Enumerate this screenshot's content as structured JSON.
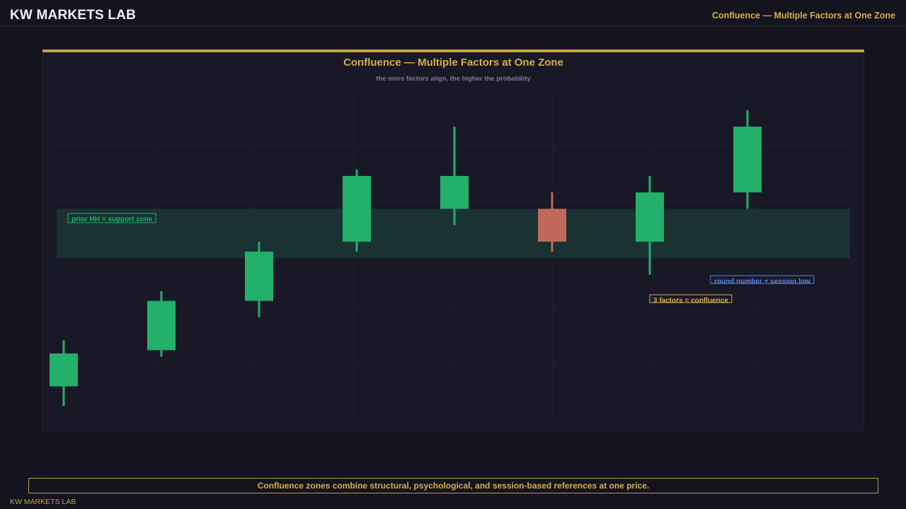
{
  "header": {
    "brand": "KW MARKETS LAB",
    "title": "Confluence — Multiple Factors at One Zone"
  },
  "chart_data": {
    "type": "candlestick",
    "title": "Confluence — Multiple Factors at One Zone",
    "subtitle": "the more factors align, the higher the probability",
    "ylim": [
      0,
      100
    ],
    "grid": true,
    "candles": [
      {
        "open": 10,
        "high": 24,
        "low": 4,
        "close": 20
      },
      {
        "open": 21,
        "high": 39,
        "low": 19,
        "close": 36
      },
      {
        "open": 36,
        "high": 54,
        "low": 31,
        "close": 51
      },
      {
        "open": 54,
        "high": 76,
        "low": 51,
        "close": 74
      },
      {
        "open": 64,
        "high": 89,
        "low": 59,
        "close": 74
      },
      {
        "open": 64,
        "high": 69,
        "low": 51,
        "close": 54
      },
      {
        "open": 54,
        "high": 74,
        "low": 44,
        "close": 69
      },
      {
        "open": 69,
        "high": 94,
        "low": 64,
        "close": 89
      }
    ],
    "zone": {
      "low": 49,
      "high": 64
    },
    "annotations": [
      {
        "text": "prior HH = support zone",
        "color": "#22b06a",
        "anchor": "zone-top-left"
      },
      {
        "text": "round number + session low",
        "color": "#5b86e5",
        "anchor": "zone-bottom-right"
      },
      {
        "text": "3 factors = confluence",
        "color": "#d4ad4e",
        "anchor": "below-zone"
      }
    ],
    "colors": {
      "bull": "#22b06a",
      "bear": "#e04e4e",
      "bear_in_zone": "#c0695a",
      "zone": "#1b3533",
      "grid": "#22222f"
    }
  },
  "footer": {
    "note": "Confluence zones combine structural, psychological, and session-based references at one price.",
    "brand": "KW MARKETS LAB"
  }
}
